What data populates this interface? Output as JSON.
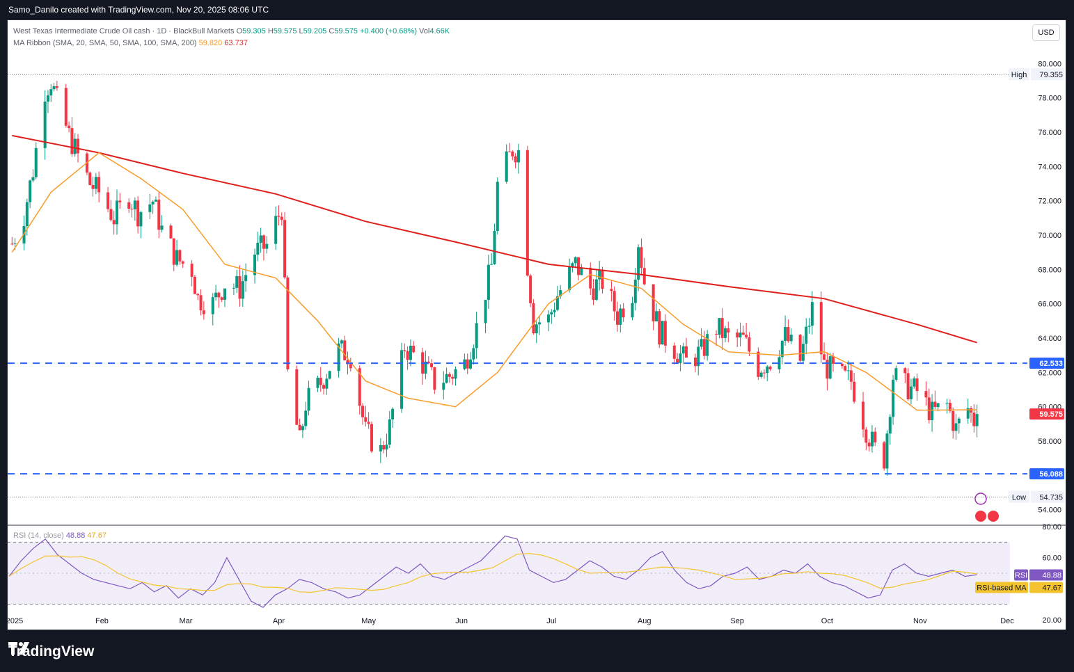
{
  "header": {
    "attribution": "Samo_Danilo created with TradingView.com, Nov 20, 2025 08:06 UTC"
  },
  "legend": {
    "symbol": "West Texas Intermediate Crude Oil cash · 1D · BlackBull Markets",
    "o_label": "O",
    "o_value": "59.305",
    "h_label": "H",
    "h_value": "59.575",
    "l_label": "L",
    "l_value": "59.205",
    "c_label": "C",
    "c_value": "59.575",
    "change": "+0.400 (+0.68%)",
    "vol_label": "Vol",
    "vol_value": "4.66K",
    "ma_label": "MA Ribbon (SMA, 20, SMA, 50, SMA, 100, SMA, 200)",
    "ma_value_1": "59.820",
    "ma_value_2": "63.737"
  },
  "currency_button": "USD",
  "rsi_legend": {
    "label": "RSI (14, close)",
    "value": "48.88",
    "ma_value": "47.67"
  },
  "price_axis": {
    "ticks": [
      "80.000",
      "78.000",
      "76.000",
      "74.000",
      "72.000",
      "70.000",
      "68.000",
      "66.000",
      "64.000",
      "62.000",
      "60.000",
      "58.000",
      "56.000",
      "54.000"
    ],
    "high_label": "High",
    "high_value": "79.355",
    "low_label": "Low",
    "low_value": "54.735",
    "level_upper": "62.533",
    "level_lower": "56.088",
    "last_price": "59.575"
  },
  "rsi_axis": {
    "ticks": [
      "80.00",
      "60.00",
      "20.00"
    ],
    "rsi_tag": "RSI",
    "rsi_value": "48.88",
    "ma_tag": "RSI-based MA",
    "ma_value": "47.67"
  },
  "time_axis": [
    "2025",
    "Feb",
    "Mar",
    "Apr",
    "May",
    "Jun",
    "Jul",
    "Aug",
    "Sep",
    "Oct",
    "Nov",
    "Dec"
  ],
  "brand": "TradingView",
  "colors": {
    "up": "#089981",
    "down": "#f23645",
    "ma20": "#f89c2a",
    "ma200": "#e0201c",
    "level": "#2962ff",
    "rsi": "#7e57c2",
    "rsi_ma": "#f4c430"
  },
  "chart_data": {
    "type": "candlestick",
    "title": "West Texas Intermediate Crude Oil cash · 1D · BlackBull Markets",
    "ylim": [
      53.5,
      80.5
    ],
    "x": [
      "Jan",
      "Feb",
      "Mar",
      "Apr",
      "May",
      "Jun",
      "Jul",
      "Aug",
      "Sep",
      "Oct",
      "Nov"
    ],
    "close_path": [
      {
        "date": "2025-01-02",
        "close": 69.5
      },
      {
        "date": "2025-01-06",
        "close": 71.2
      },
      {
        "date": "2025-01-09",
        "close": 73.8
      },
      {
        "date": "2025-01-13",
        "close": 78.5
      },
      {
        "date": "2025-01-15",
        "close": 79.0
      },
      {
        "date": "2025-01-17",
        "close": 77.8
      },
      {
        "date": "2025-01-21",
        "close": 75.8
      },
      {
        "date": "2025-01-24",
        "close": 74.6
      },
      {
        "date": "2025-01-28",
        "close": 73.0
      },
      {
        "date": "2025-01-31",
        "close": 72.5
      },
      {
        "date": "2025-02-05",
        "close": 71.0
      },
      {
        "date": "2025-02-10",
        "close": 72.3
      },
      {
        "date": "2025-02-13",
        "close": 71.3
      },
      {
        "date": "2025-02-18",
        "close": 72.0
      },
      {
        "date": "2025-02-21",
        "close": 70.3
      },
      {
        "date": "2025-02-26",
        "close": 68.6
      },
      {
        "date": "2025-03-03",
        "close": 68.0
      },
      {
        "date": "2025-03-05",
        "close": 66.3
      },
      {
        "date": "2025-03-10",
        "close": 66.0
      },
      {
        "date": "2025-03-14",
        "close": 67.2
      },
      {
        "date": "2025-03-19",
        "close": 66.9
      },
      {
        "date": "2025-03-24",
        "close": 69.0
      },
      {
        "date": "2025-03-28",
        "close": 69.4
      },
      {
        "date": "2025-04-02",
        "close": 71.6
      },
      {
        "date": "2025-04-04",
        "close": 61.9
      },
      {
        "date": "2025-04-08",
        "close": 57.9
      },
      {
        "date": "2025-04-10",
        "close": 60.2
      },
      {
        "date": "2025-04-15",
        "close": 61.4
      },
      {
        "date": "2025-04-21",
        "close": 63.3
      },
      {
        "date": "2025-04-25",
        "close": 63.0
      },
      {
        "date": "2025-04-30",
        "close": 58.5
      },
      {
        "date": "2025-05-05",
        "close": 57.4
      },
      {
        "date": "2025-05-08",
        "close": 58.8
      },
      {
        "date": "2025-05-13",
        "close": 63.5
      },
      {
        "date": "2025-05-19",
        "close": 62.5
      },
      {
        "date": "2025-05-23",
        "close": 61.4
      },
      {
        "date": "2025-05-28",
        "close": 61.8
      },
      {
        "date": "2025-06-02",
        "close": 62.5
      },
      {
        "date": "2025-06-06",
        "close": 64.6
      },
      {
        "date": "2025-06-11",
        "close": 68.2
      },
      {
        "date": "2025-06-13",
        "close": 72.9
      },
      {
        "date": "2025-06-18",
        "close": 75.0
      },
      {
        "date": "2025-06-20",
        "close": 74.9
      },
      {
        "date": "2025-06-23",
        "close": 68.3
      },
      {
        "date": "2025-06-25",
        "close": 64.9
      },
      {
        "date": "2025-06-30",
        "close": 65.1
      },
      {
        "date": "2025-07-03",
        "close": 66.5
      },
      {
        "date": "2025-07-09",
        "close": 68.3
      },
      {
        "date": "2025-07-14",
        "close": 66.9
      },
      {
        "date": "2025-07-18",
        "close": 67.3
      },
      {
        "date": "2025-07-23",
        "close": 65.3
      },
      {
        "date": "2025-07-28",
        "close": 66.7
      },
      {
        "date": "2025-07-30",
        "close": 69.7
      },
      {
        "date": "2025-08-01",
        "close": 67.3
      },
      {
        "date": "2025-08-06",
        "close": 64.4
      },
      {
        "date": "2025-08-12",
        "close": 63.2
      },
      {
        "date": "2025-08-15",
        "close": 62.6
      },
      {
        "date": "2025-08-20",
        "close": 63.2
      },
      {
        "date": "2025-08-25",
        "close": 64.6
      },
      {
        "date": "2025-08-29",
        "close": 64.0
      },
      {
        "date": "2025-09-03",
        "close": 63.9
      },
      {
        "date": "2025-09-08",
        "close": 62.3
      },
      {
        "date": "2025-09-12",
        "close": 62.7
      },
      {
        "date": "2025-09-17",
        "close": 64.1
      },
      {
        "date": "2025-09-22",
        "close": 62.7
      },
      {
        "date": "2025-09-26",
        "close": 65.7
      },
      {
        "date": "2025-09-30",
        "close": 62.4
      },
      {
        "date": "2025-10-06",
        "close": 61.7
      },
      {
        "date": "2025-10-09",
        "close": 61.5
      },
      {
        "date": "2025-10-14",
        "close": 58.7
      },
      {
        "date": "2025-10-17",
        "close": 57.5
      },
      {
        "date": "2025-10-20",
        "close": 57.0
      },
      {
        "date": "2025-10-23",
        "close": 61.8
      },
      {
        "date": "2025-10-27",
        "close": 61.2
      },
      {
        "date": "2025-10-31",
        "close": 60.9
      },
      {
        "date": "2025-11-05",
        "close": 59.6
      },
      {
        "date": "2025-11-10",
        "close": 60.1
      },
      {
        "date": "2025-11-13",
        "close": 58.7
      },
      {
        "date": "2025-11-17",
        "close": 59.9
      },
      {
        "date": "2025-11-19",
        "close": 59.2
      },
      {
        "date": "2025-11-20",
        "close": 59.575
      }
    ],
    "ma20_path": [
      {
        "date": "2025-01-02",
        "value": 69.0
      },
      {
        "date": "2025-01-15",
        "value": 72.5
      },
      {
        "date": "2025-01-31",
        "value": 74.8
      },
      {
        "date": "2025-02-14",
        "value": 73.3
      },
      {
        "date": "2025-02-28",
        "value": 71.5
      },
      {
        "date": "2025-03-14",
        "value": 68.3
      },
      {
        "date": "2025-03-31",
        "value": 67.5
      },
      {
        "date": "2025-04-14",
        "value": 65.0
      },
      {
        "date": "2025-04-30",
        "value": 61.5
      },
      {
        "date": "2025-05-14",
        "value": 60.5
      },
      {
        "date": "2025-05-30",
        "value": 60.0
      },
      {
        "date": "2025-06-13",
        "value": 62.0
      },
      {
        "date": "2025-06-30",
        "value": 66.0
      },
      {
        "date": "2025-07-14",
        "value": 67.7
      },
      {
        "date": "2025-07-31",
        "value": 66.9
      },
      {
        "date": "2025-08-14",
        "value": 64.8
      },
      {
        "date": "2025-08-29",
        "value": 63.2
      },
      {
        "date": "2025-09-15",
        "value": 63.0
      },
      {
        "date": "2025-09-30",
        "value": 63.2
      },
      {
        "date": "2025-10-14",
        "value": 62.0
      },
      {
        "date": "2025-10-31",
        "value": 59.8
      },
      {
        "date": "2025-11-20",
        "value": 59.82
      }
    ],
    "ma200_path": [
      {
        "date": "2025-01-02",
        "value": 75.8
      },
      {
        "date": "2025-01-31",
        "value": 74.8
      },
      {
        "date": "2025-02-28",
        "value": 73.6
      },
      {
        "date": "2025-03-31",
        "value": 72.4
      },
      {
        "date": "2025-04-30",
        "value": 70.8
      },
      {
        "date": "2025-05-30",
        "value": 69.6
      },
      {
        "date": "2025-06-30",
        "value": 68.3
      },
      {
        "date": "2025-07-31",
        "value": 67.7
      },
      {
        "date": "2025-08-29",
        "value": 67.0
      },
      {
        "date": "2025-09-30",
        "value": 66.3
      },
      {
        "date": "2025-10-31",
        "value": 64.8
      },
      {
        "date": "2025-11-20",
        "value": 63.737
      }
    ],
    "levels": [
      62.533,
      56.088
    ],
    "high": 79.355,
    "low": 54.735,
    "rsi": {
      "ylim": [
        20,
        80
      ],
      "bands": [
        70,
        30
      ],
      "value": 48.88,
      "ma_value": 47.67,
      "rsi_path": [
        48,
        58,
        66,
        72,
        62,
        56,
        50,
        46,
        44,
        42,
        40,
        44,
        38,
        42,
        34,
        40,
        36,
        44,
        60,
        46,
        32,
        28,
        36,
        40,
        46,
        44,
        40,
        38,
        34,
        36,
        42,
        48,
        54,
        50,
        56,
        48,
        46,
        50,
        54,
        58,
        66,
        74,
        72,
        52,
        48,
        44,
        46,
        52,
        58,
        54,
        48,
        46,
        52,
        60,
        64,
        52,
        44,
        40,
        42,
        48,
        50,
        54,
        46,
        48,
        52,
        50,
        56,
        48,
        44,
        42,
        38,
        34,
        36,
        52,
        56,
        50,
        48,
        50,
        52,
        48,
        49
      ]
    }
  }
}
